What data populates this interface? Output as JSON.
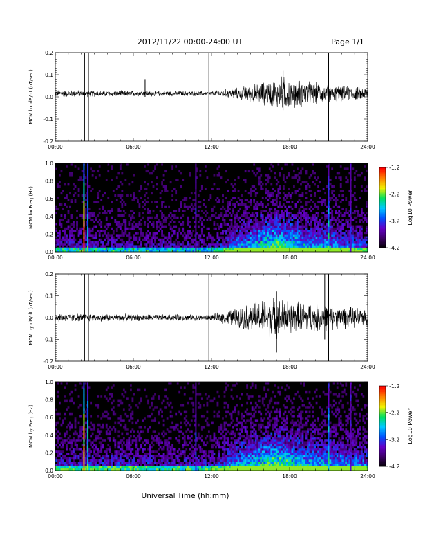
{
  "header": {
    "date_range": "2012/11/22  00:00-24:00 UT",
    "page": "Page 1/1"
  },
  "x_axis": {
    "title": "Universal Time (hh:mm)",
    "ticks": [
      "00:00",
      "06:00",
      "12:00",
      "18:00",
      "24:00"
    ],
    "range_hours": [
      0,
      24
    ]
  },
  "colors": {
    "trace": "#000000",
    "colormap": [
      "#000000",
      "#3c0064",
      "#6400c8",
      "#0050ff",
      "#00c8ff",
      "#00e060",
      "#f0f000",
      "#ff8000",
      "#ff0000"
    ]
  },
  "chart_data": [
    {
      "type": "line",
      "ylabel": "MCM bx dB/dt (nT/sec)",
      "ylim": [
        -0.2,
        0.2
      ],
      "yticks": [
        "0.2",
        "0.1",
        "0.0",
        "-0.1",
        "-0.2"
      ],
      "xlim": [
        0,
        24
      ],
      "baseline": 0.015,
      "envelope": [
        {
          "x": 0,
          "amp": 0.012
        },
        {
          "x": 6,
          "amp": 0.01
        },
        {
          "x": 12,
          "amp": 0.008
        },
        {
          "x": 14,
          "amp": 0.02
        },
        {
          "x": 16,
          "amp": 0.04
        },
        {
          "x": 17.5,
          "amp": 0.06
        },
        {
          "x": 19,
          "amp": 0.045
        },
        {
          "x": 21,
          "amp": 0.03
        },
        {
          "x": 24,
          "amp": 0.02
        }
      ],
      "spikes": [
        {
          "x": 2.25,
          "y0": -0.2,
          "y1": 0.2
        },
        {
          "x": 2.55,
          "y0": -0.2,
          "y1": 0.2
        },
        {
          "x": 11.8,
          "y0": -0.2,
          "y1": 0.2
        },
        {
          "x": 21.0,
          "y0": -0.2,
          "y1": 0.2
        },
        {
          "x": 6.9,
          "y0": 0.0,
          "y1": 0.08
        },
        {
          "x": 17.5,
          "y0": -0.06,
          "y1": 0.12
        }
      ]
    },
    {
      "type": "heatmap",
      "ylabel": "MCM bx Freq (Hz)",
      "ylim": [
        0.0,
        1.0
      ],
      "yticks": [
        "1.0",
        "0.8",
        "0.6",
        "0.4",
        "0.2",
        "0.0"
      ],
      "xlim": [
        0,
        24
      ],
      "colorbar": {
        "label": "Log10 Power",
        "ticks": [
          "-1.2",
          "-2.2",
          "-3.2",
          "-4.2"
        ],
        "range": [
          -4.2,
          -1.2
        ]
      },
      "stripes": [
        {
          "x": 2.2,
          "power": -1.4
        },
        {
          "x": 2.5,
          "power": -2.4
        },
        {
          "x": 10.8,
          "power": -3.3
        },
        {
          "x": 21.0,
          "power": -2.5
        },
        {
          "x": 22.7,
          "power": -3.2
        }
      ],
      "activity": [
        {
          "x": 0,
          "level": 0.25
        },
        {
          "x": 12,
          "level": 0.2
        },
        {
          "x": 14,
          "level": 0.45
        },
        {
          "x": 17,
          "level": 0.75
        },
        {
          "x": 19,
          "level": 0.55
        },
        {
          "x": 24,
          "level": 0.35
        }
      ]
    },
    {
      "type": "line",
      "ylabel": "MCM by dB/dt (nT/sec)",
      "ylim": [
        -0.2,
        0.2
      ],
      "yticks": [
        "0.2",
        "0.1",
        "0.0",
        "-0.1",
        "-0.2"
      ],
      "xlim": [
        0,
        24
      ],
      "baseline": 0.0,
      "envelope": [
        {
          "x": 0,
          "amp": 0.015
        },
        {
          "x": 6,
          "amp": 0.012
        },
        {
          "x": 12,
          "amp": 0.01
        },
        {
          "x": 14,
          "amp": 0.035
        },
        {
          "x": 16.5,
          "amp": 0.07
        },
        {
          "x": 18,
          "amp": 0.06
        },
        {
          "x": 20,
          "amp": 0.05
        },
        {
          "x": 22,
          "amp": 0.04
        },
        {
          "x": 24,
          "amp": 0.03
        }
      ],
      "spikes": [
        {
          "x": 2.25,
          "y0": -0.2,
          "y1": 0.2
        },
        {
          "x": 2.55,
          "y0": -0.2,
          "y1": 0.2
        },
        {
          "x": 11.8,
          "y0": -0.2,
          "y1": 0.2
        },
        {
          "x": 21.0,
          "y0": -0.2,
          "y1": 0.2
        },
        {
          "x": 17.0,
          "y0": -0.16,
          "y1": 0.12
        },
        {
          "x": 20.7,
          "y0": -0.1,
          "y1": 0.2
        }
      ]
    },
    {
      "type": "heatmap",
      "ylabel": "MCM by Freq (Hz)",
      "ylim": [
        0.0,
        1.0
      ],
      "yticks": [
        "1.0",
        "0.8",
        "0.6",
        "0.4",
        "0.2",
        "0.0"
      ],
      "xlim": [
        0,
        24
      ],
      "colorbar": {
        "label": "Log10 Power",
        "ticks": [
          "-1.2",
          "-2.2",
          "-3.2",
          "-4.2"
        ],
        "range": [
          -4.2,
          -1.2
        ]
      },
      "stripes": [
        {
          "x": 2.2,
          "power": -1.4
        },
        {
          "x": 2.5,
          "power": -2.4
        },
        {
          "x": 10.8,
          "power": -3.3
        },
        {
          "x": 21.0,
          "power": -2.5
        },
        {
          "x": 22.7,
          "power": -3.2
        }
      ],
      "activity": [
        {
          "x": 0,
          "level": 0.3
        },
        {
          "x": 12,
          "level": 0.25
        },
        {
          "x": 14,
          "level": 0.5
        },
        {
          "x": 17,
          "level": 0.8
        },
        {
          "x": 19,
          "level": 0.6
        },
        {
          "x": 24,
          "level": 0.4
        }
      ]
    }
  ]
}
